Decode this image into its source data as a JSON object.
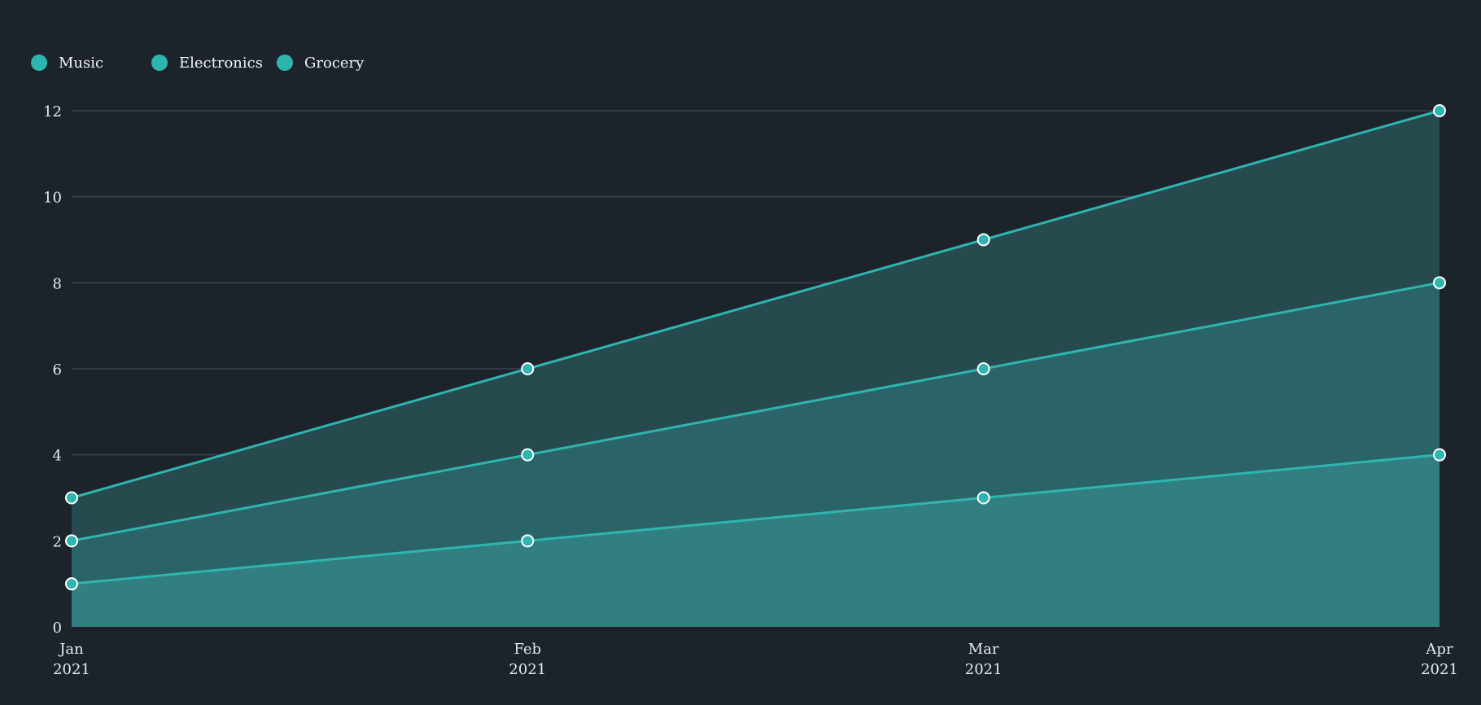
{
  "chart_data": {
    "type": "area",
    "stacked": true,
    "categories": [
      {
        "month": "Jan",
        "year": "2021"
      },
      {
        "month": "Feb",
        "year": "2021"
      },
      {
        "month": "Mar",
        "year": "2021"
      },
      {
        "month": "Apr",
        "year": "2021"
      }
    ],
    "series": [
      {
        "name": "Music",
        "values": [
          1,
          2,
          3,
          4
        ]
      },
      {
        "name": "Electronics",
        "values": [
          1,
          2,
          3,
          4
        ]
      },
      {
        "name": "Grocery",
        "values": [
          1,
          2,
          3,
          4
        ]
      }
    ],
    "ylim": [
      0,
      12
    ],
    "yticks": [
      0,
      2,
      4,
      6,
      8,
      10,
      12
    ],
    "grid": true,
    "legend_position": "top-left",
    "colors": {
      "background": "#1c232b",
      "line": "#2fb5b0",
      "marker_fill": "#2fb5b0",
      "marker_stroke": "#ffffff",
      "grid": "#3a454f",
      "text": "#e6ebef",
      "fill_layers": [
        "#317f80",
        "#2b6468",
        "#264a4e"
      ]
    }
  }
}
